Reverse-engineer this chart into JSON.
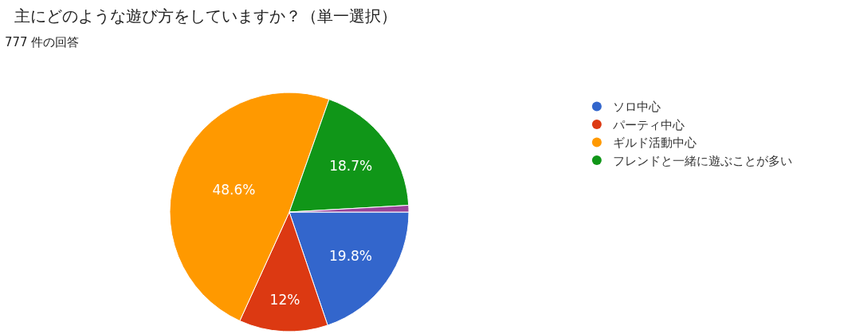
{
  "chart_data": {
    "type": "pie",
    "title": "主にどのような遊び方をしていますか？（単一選択）",
    "subtitle": "777 件の回答",
    "categories": [
      "ソロ中心",
      "パーティ中心",
      "ギルド活動中心",
      "フレンドと一緒に遊ぶことが多い",
      null
    ],
    "values": [
      19.8,
      12,
      48.6,
      18.7,
      0.9
    ],
    "colors": [
      "#3366cc",
      "#dc3912",
      "#ff9900",
      "#109618",
      "#994499"
    ],
    "value_labels": [
      "19.8%",
      "12%",
      "48.6%",
      "18.7%",
      null
    ],
    "legend": "right"
  }
}
